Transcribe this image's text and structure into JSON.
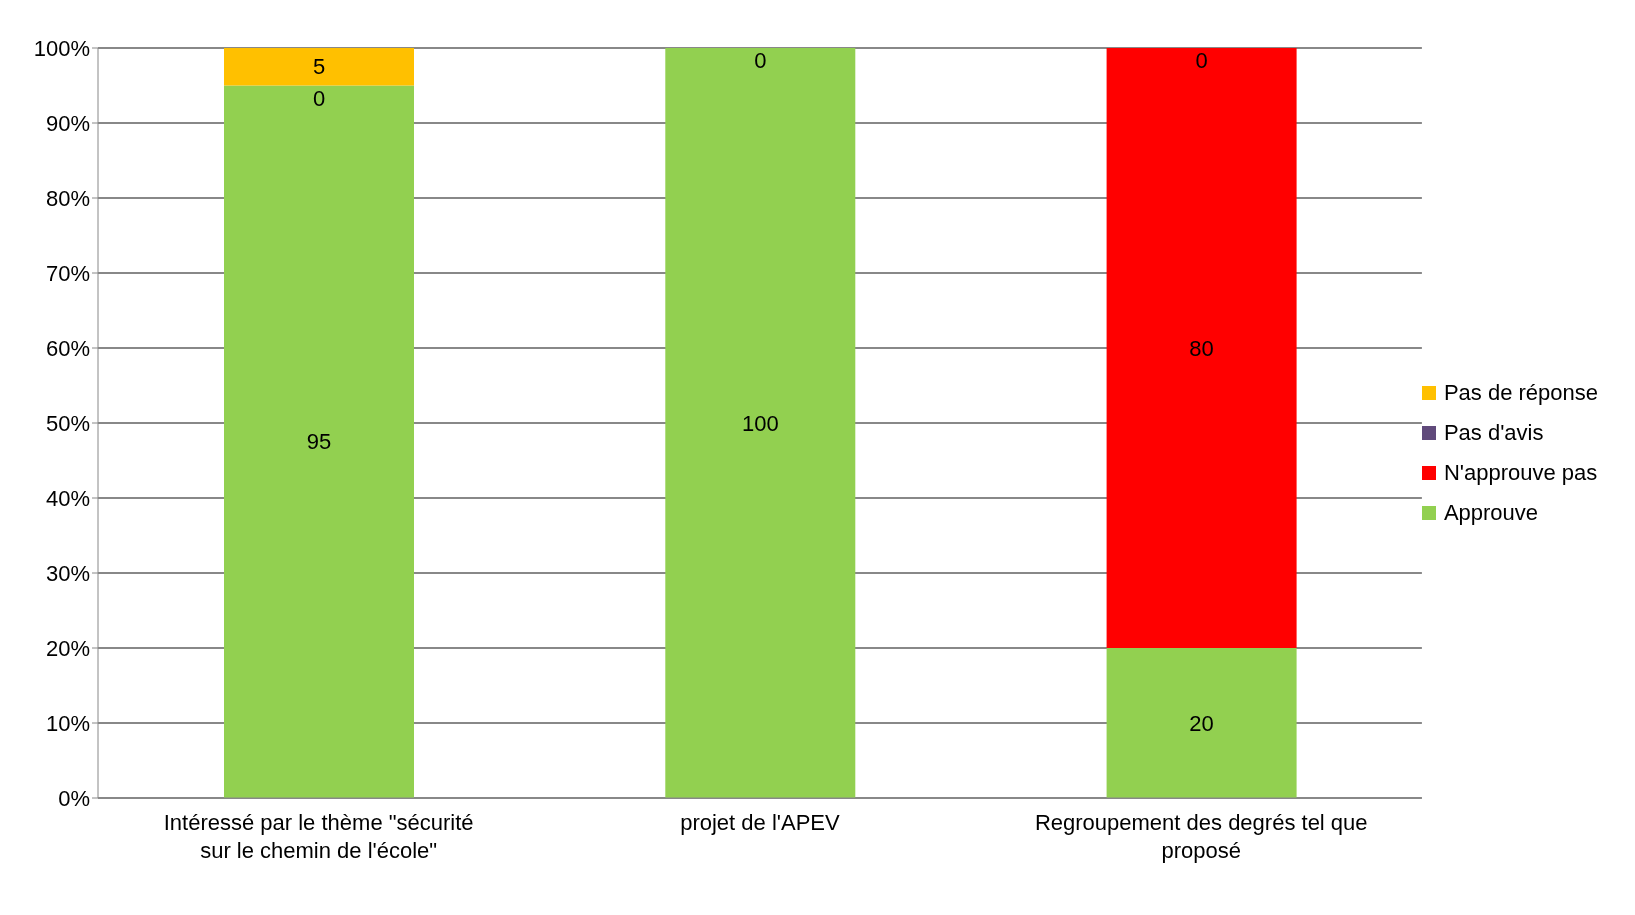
{
  "chart_data": {
    "type": "bar",
    "stacked": true,
    "categories": [
      "Intéressé par le thème \"sécurité sur le chemin de l'école\"",
      "projet de l'APEV",
      "Regroupement des degrés tel que proposé"
    ],
    "series": [
      {
        "name": "Approuve",
        "color": "#92d050",
        "values": [
          95,
          100,
          20
        ],
        "value_labels": [
          "95",
          "100",
          "20"
        ]
      },
      {
        "name": "N'approuve pas",
        "color": "#ff0000",
        "values": [
          0,
          0,
          80
        ],
        "value_labels": [
          "0",
          "0",
          "80"
        ]
      },
      {
        "name": "Pas d'avis",
        "color": "#604a7b",
        "values": [
          0,
          0,
          0
        ],
        "value_labels": [
          null,
          null,
          null
        ]
      },
      {
        "name": "Pas de réponse",
        "color": "#ffc000",
        "values": [
          5,
          0,
          0
        ],
        "value_labels": [
          "5",
          null,
          "0"
        ]
      }
    ],
    "ylim": [
      0,
      100
    ],
    "yticks": [
      {
        "value": 0,
        "label": "0%"
      },
      {
        "value": 10,
        "label": "10%"
      },
      {
        "value": 20,
        "label": "20%"
      },
      {
        "value": 30,
        "label": "30%"
      },
      {
        "value": 40,
        "label": "40%"
      },
      {
        "value": 50,
        "label": "50%"
      },
      {
        "value": 60,
        "label": "60%"
      },
      {
        "value": 70,
        "label": "70%"
      },
      {
        "value": 80,
        "label": "80%"
      },
      {
        "value": 90,
        "label": "90%"
      },
      {
        "value": 100,
        "label": "100%"
      }
    ],
    "grid": "y",
    "legend": "right"
  }
}
